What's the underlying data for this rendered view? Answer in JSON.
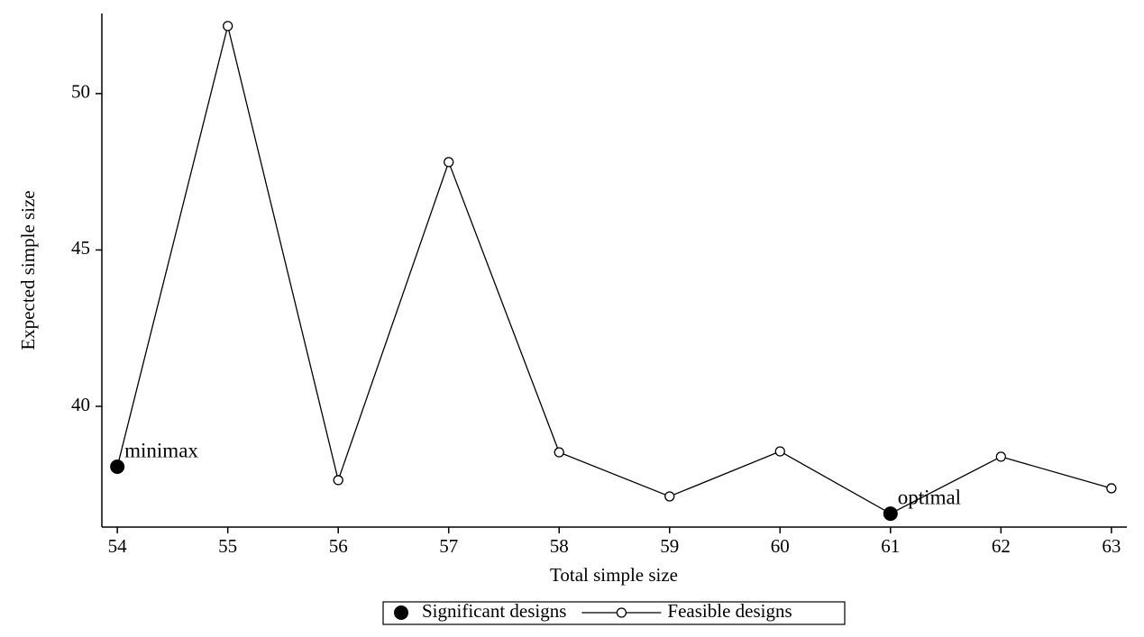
{
  "chart_data": {
    "type": "line",
    "x_label": "Total simple size",
    "y_label": "Expected simple size",
    "xlim": [
      53.86,
      63.14
    ],
    "ylim": [
      36.14,
      52.56
    ],
    "xticks": [
      54,
      55,
      56,
      57,
      58,
      59,
      60,
      61,
      62,
      63
    ],
    "yticks": [
      40,
      45,
      50
    ],
    "grid": false,
    "legend": "bottom",
    "series": [
      {
        "name": "Feasible designs",
        "color": "#000000",
        "marker": "open",
        "line": true,
        "x": [
          54,
          55,
          56,
          57,
          58,
          59,
          60,
          61,
          62,
          63
        ],
        "values": [
          38.07,
          52.16,
          37.64,
          47.81,
          38.53,
          37.12,
          38.56,
          36.57,
          38.39,
          37.38
        ]
      },
      {
        "name": "Significant designs",
        "color": "#000000",
        "marker": "filled",
        "line": false,
        "x": [
          54,
          61
        ],
        "values": [
          38.07,
          36.57
        ],
        "labels": [
          "minimax",
          "optimal"
        ]
      }
    ]
  }
}
